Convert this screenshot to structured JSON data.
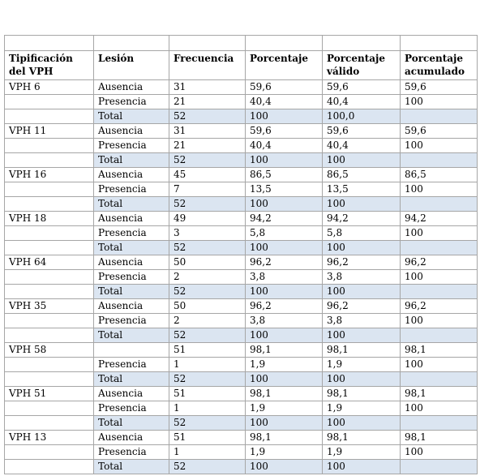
{
  "table": {
    "header": [
      "Tipificación del VPH",
      "Lesión",
      "Frecuencia",
      "Porcentaje",
      "Porcentaje válido",
      "Porcentaje acumulado"
    ],
    "rows": [
      [
        "VPH 6",
        "Ausencia",
        "31",
        "59,6",
        "59,6",
        "59,6"
      ],
      [
        null,
        "Presencia",
        "21",
        "40,4",
        "40,4",
        "100"
      ],
      [
        null,
        "Total",
        "52",
        "100",
        "100,0",
        null
      ],
      [
        "VPH 11",
        "Ausencia",
        "31",
        "59,6",
        "59,6",
        "59,6"
      ],
      [
        null,
        "Presencia",
        "21",
        "40,4",
        "40,4",
        "100"
      ],
      [
        null,
        "Total",
        "52",
        "100",
        "100",
        null
      ],
      [
        "VPH 16",
        "Ausencia",
        "45",
        "86,5",
        "86,5",
        "86,5"
      ],
      [
        null,
        "Presencia",
        "7",
        "13,5",
        "13,5",
        "100"
      ],
      [
        null,
        "Total",
        "52",
        "100",
        "100",
        null
      ],
      [
        "VPH 18",
        "Ausencia",
        "49",
        "94,2",
        "94,2",
        "94,2"
      ],
      [
        null,
        "Presencia",
        "3",
        "5,8",
        "5,8",
        "100"
      ],
      [
        null,
        "Total",
        "52",
        "100",
        "100",
        null
      ],
      [
        "VPH 64",
        "Ausencia",
        "50",
        "96,2",
        "96,2",
        "96,2"
      ],
      [
        null,
        "Presencia",
        "2",
        "3,8",
        "3,8",
        "100"
      ],
      [
        null,
        "Total",
        "52",
        "100",
        "100",
        null
      ],
      [
        "VPH 35",
        "Ausencia",
        "50",
        "96,2",
        "96,2",
        "96,2"
      ],
      [
        null,
        "Presencia",
        "2",
        "3,8",
        "3,8",
        "100"
      ],
      [
        null,
        "Total",
        "52",
        "100",
        "100",
        null
      ],
      [
        "VPH 58",
        null,
        "51",
        "98,1",
        "98,1",
        "98,1"
      ],
      [
        null,
        "Presencia",
        "1",
        "1,9",
        "1,9",
        "100"
      ],
      [
        null,
        "Total",
        "52",
        "100",
        "100",
        null
      ],
      [
        "VPH 51",
        "Ausencia",
        "51",
        "98,1",
        "98,1",
        "98,1"
      ],
      [
        null,
        "Presencia",
        "1",
        "1,9",
        "1,9",
        "100"
      ],
      [
        null,
        "Total",
        "52",
        "100",
        "100",
        null
      ],
      [
        "VPH 13",
        "Ausencia",
        "51",
        "98,1",
        "98,1",
        "98,1"
      ],
      [
        null,
        "Presencia",
        "1",
        "1,9",
        "1,9",
        "100"
      ],
      [
        null,
        "Total",
        "52",
        "100",
        "100",
        null
      ]
    ]
  }
}
